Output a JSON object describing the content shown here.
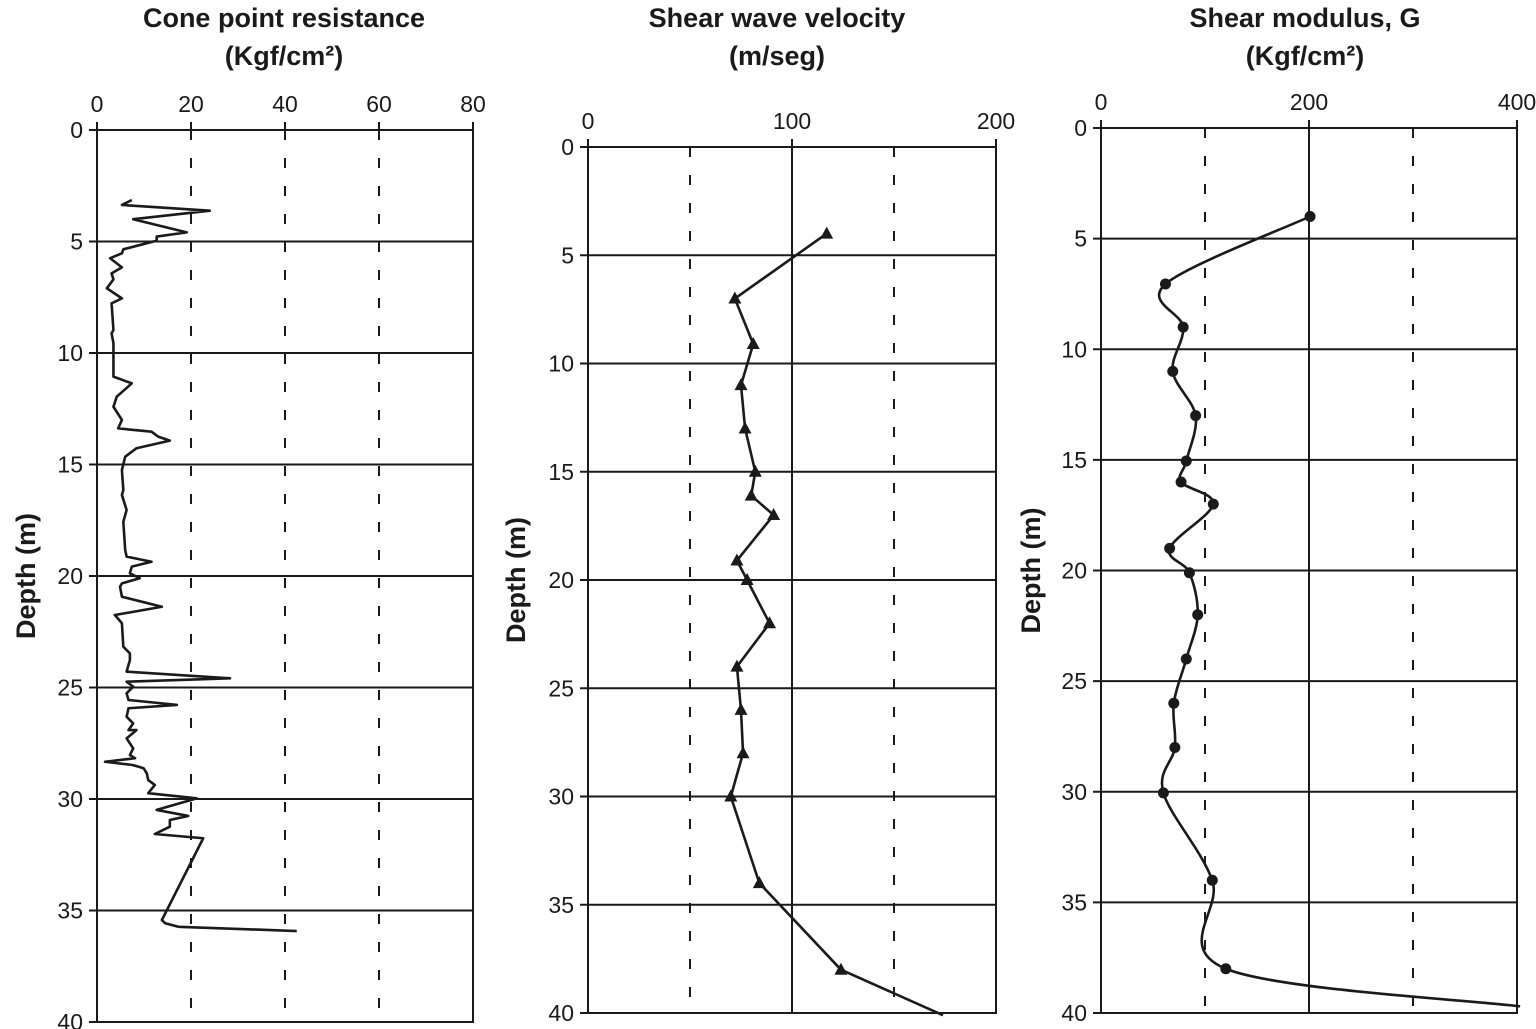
{
  "chart_data": [
    {
      "type": "line",
      "title_lines": [
        "Cone point resistance",
        "(Kgf/cm²)"
      ],
      "xlabel": "",
      "ylabel": "Depth (m)",
      "xlim": [
        0,
        80
      ],
      "ylim": [
        0,
        40
      ],
      "y_inverted": true,
      "x_axis_position": "top",
      "xticks": [
        0,
        20,
        40,
        60,
        80
      ],
      "yticks": [
        0,
        5,
        10,
        15,
        20,
        25,
        30,
        35,
        40
      ],
      "grid": {
        "horizontal": "solid",
        "vertical": "dashed"
      },
      "marker": "none",
      "smooth": false,
      "series": [
        {
          "x": [
            7.4,
            5.3,
            24.0,
            7.7,
            19.1,
            12.7,
            12.7,
            9.1,
            5.6,
            5.3,
            2.8,
            5.3,
            3.1,
            3.5,
            2.1,
            5.3,
            3.1,
            3.5,
            3.1,
            3.5,
            3.5,
            7.4,
            4.2,
            3.5,
            5.3,
            4.5,
            11.6,
            13.0,
            15.5,
            8.4,
            6.0,
            5.3,
            5.6,
            5.3,
            6.3,
            5.6,
            6.0,
            6.3,
            11.6,
            7.4,
            7.0,
            9.1,
            5.3,
            4.9,
            5.3,
            13.8,
            3.8,
            5.3,
            5.6,
            7.0,
            7.0,
            6.3,
            28.3,
            6.3,
            7.7,
            6.3,
            6.7,
            17.0,
            6.7,
            6.3,
            7.7,
            6.7,
            8.4,
            6.3,
            7.7,
            7.0,
            8.1,
            1.7,
            7.7,
            9.9,
            10.6,
            10.9,
            12.3,
            10.9,
            21.2,
            12.7,
            19.4,
            15.5,
            15.5,
            12.3,
            22.6,
            13.8,
            14.5,
            17.3,
            42.5
          ],
          "y": [
            3.14,
            3.36,
            3.62,
            4.0,
            4.59,
            4.78,
            4.96,
            5.16,
            5.35,
            5.53,
            5.75,
            6.16,
            6.43,
            6.7,
            7.1,
            7.55,
            7.77,
            8.97,
            9.12,
            9.56,
            11.06,
            11.36,
            11.96,
            12.41,
            13.0,
            13.38,
            13.53,
            13.75,
            13.93,
            14.27,
            14.65,
            15.25,
            16.14,
            16.37,
            17.04,
            17.57,
            18.83,
            19.13,
            19.36,
            19.58,
            19.88,
            20.1,
            20.33,
            20.48,
            20.93,
            21.38,
            21.75,
            22.12,
            23.17,
            23.47,
            23.77,
            24.29,
            24.59,
            24.74,
            24.96,
            25.26,
            25.56,
            25.78,
            25.93,
            26.31,
            26.61,
            26.91,
            26.91,
            27.28,
            27.73,
            28.03,
            28.17,
            28.33,
            28.48,
            28.62,
            28.85,
            29.15,
            29.37,
            29.74,
            29.97,
            30.49,
            30.76,
            30.94,
            31.24,
            31.57,
            31.76,
            35.43,
            35.57,
            35.73,
            35.92
          ]
        }
      ]
    },
    {
      "type": "line",
      "title_lines": [
        "Shear wave velocity",
        "(m/seg)"
      ],
      "xlabel": "",
      "ylabel": "Depth (m)",
      "xlim": [
        0,
        200
      ],
      "ylim": [
        0,
        40
      ],
      "y_inverted": true,
      "x_axis_position": "top",
      "xticks": [
        0,
        100,
        200
      ],
      "yticks": [
        0,
        5,
        10,
        15,
        20,
        25,
        30,
        35,
        40
      ],
      "grid": {
        "horizontal": "solid",
        "vertical": "solid at 100, dashed at 50 and 150"
      },
      "marker": "triangle",
      "smooth": false,
      "series": [
        {
          "x": [
            117,
            72,
            81,
            75,
            77,
            82,
            80,
            91,
            73,
            78,
            89,
            73,
            75,
            76,
            70,
            84,
            124,
            174
          ],
          "y": [
            4.0,
            7.0,
            9.1,
            11.0,
            13.0,
            15.0,
            16.1,
            17.0,
            19.1,
            20.0,
            22.0,
            24.0,
            26.0,
            28.0,
            30.0,
            34.0,
            38.0,
            40.1
          ],
          "marked": [
            true,
            true,
            true,
            true,
            true,
            true,
            true,
            true,
            true,
            true,
            true,
            true,
            true,
            true,
            true,
            true,
            true,
            false
          ]
        }
      ]
    },
    {
      "type": "line",
      "title_lines": [
        "Shear modulus, G",
        "(Kgf/cm²)"
      ],
      "xlabel": "",
      "ylabel": "Depth (m)",
      "xlim": [
        0,
        400
      ],
      "ylim": [
        0,
        40
      ],
      "y_inverted": true,
      "x_axis_position": "top",
      "xticks": [
        0,
        200,
        400
      ],
      "yticks": [
        0,
        5,
        10,
        15,
        20,
        25,
        30,
        35,
        40
      ],
      "grid": {
        "horizontal": "solid",
        "vertical": "solid at 200, dashed at 100 and 300"
      },
      "marker": "circle",
      "smooth": true,
      "series": [
        {
          "x": [
            201,
            62,
            79,
            69,
            91,
            82,
            77,
            108,
            66,
            85,
            93,
            82,
            70,
            71,
            60,
            107,
            120,
            403
          ],
          "y": [
            4.0,
            7.05,
            9.0,
            11.0,
            13.0,
            15.05,
            16.0,
            17.0,
            19.0,
            20.1,
            22.0,
            24.0,
            26.0,
            28.0,
            30.05,
            34.0,
            38.0,
            39.7
          ],
          "marked": [
            true,
            true,
            true,
            true,
            true,
            true,
            true,
            true,
            true,
            true,
            true,
            true,
            true,
            true,
            true,
            true,
            true,
            false
          ]
        }
      ]
    }
  ],
  "colors": {
    "line": "#1a1a1a",
    "background": "#ffffff"
  }
}
